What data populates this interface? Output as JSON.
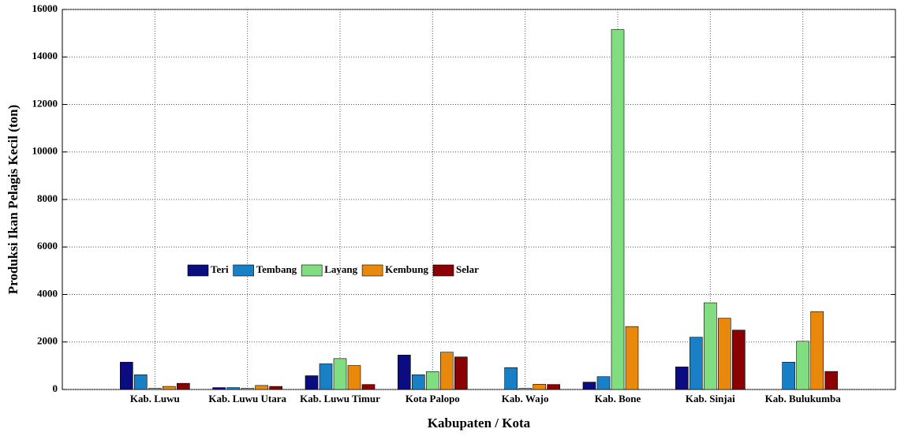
{
  "chart_data": {
    "type": "bar",
    "x_label": "Kabupaten / Kota",
    "y_label": "Produksi Ikan Pelagis Kecil (ton)",
    "categories": [
      "Kab. Luwu",
      "Kab. Luwu Utara",
      "Kab. Luwu Timur",
      "Kota Palopo",
      "Kab. Wajo",
      "Kab. Bone",
      "Kab. Sinjai",
      "Kab. Bulukumba"
    ],
    "series": [
      {
        "name": "Teri",
        "color": "#0b0b82",
        "values": [
          1150,
          80,
          580,
          1450,
          0,
          310,
          950,
          0
        ]
      },
      {
        "name": "Tembang",
        "color": "#1a80c6",
        "values": [
          620,
          80,
          1080,
          620,
          920,
          540,
          2200,
          1150
        ]
      },
      {
        "name": "Layang",
        "color": "#80de80",
        "values": [
          50,
          50,
          1300,
          750,
          50,
          15150,
          3650,
          2030
        ]
      },
      {
        "name": "Kembung",
        "color": "#e8890c",
        "values": [
          130,
          170,
          1010,
          1570,
          220,
          2650,
          3000,
          3280
        ]
      },
      {
        "name": "Selar",
        "color": "#8b0000",
        "values": [
          260,
          130,
          210,
          1370,
          210,
          0,
          2500,
          760
        ]
      }
    ],
    "ylim": [
      0,
      16000
    ],
    "yticks": [
      0,
      2000,
      4000,
      6000,
      8000,
      10000,
      12000,
      14000,
      16000
    ],
    "grid": true
  }
}
